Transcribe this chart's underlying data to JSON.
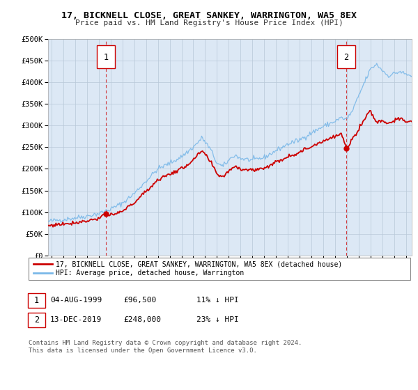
{
  "title": "17, BICKNELL CLOSE, GREAT SANKEY, WARRINGTON, WA5 8EX",
  "subtitle": "Price paid vs. HM Land Registry's House Price Index (HPI)",
  "hpi_color": "#7ab8e8",
  "price_color": "#cc0000",
  "bg_color": "#dce8f5",
  "grid_color": "#b8c8d8",
  "ylim": [
    0,
    500000
  ],
  "yticks": [
    0,
    50000,
    100000,
    150000,
    200000,
    250000,
    300000,
    350000,
    400000,
    450000,
    500000
  ],
  "ytick_labels": [
    "£0",
    "£50K",
    "£100K",
    "£150K",
    "£200K",
    "£250K",
    "£300K",
    "£350K",
    "£400K",
    "£450K",
    "£500K"
  ],
  "xlim_start": 1994.7,
  "xlim_end": 2025.5,
  "xticks": [
    1995,
    1996,
    1997,
    1998,
    1999,
    2000,
    2001,
    2002,
    2003,
    2004,
    2005,
    2006,
    2007,
    2008,
    2009,
    2010,
    2011,
    2012,
    2013,
    2014,
    2015,
    2016,
    2017,
    2018,
    2019,
    2020,
    2021,
    2022,
    2023,
    2024,
    2025
  ],
  "sale1_x": 1999.59,
  "sale1_y": 96500,
  "sale1_label": "1",
  "sale1_date": "04-AUG-1999",
  "sale1_price": "£96,500",
  "sale1_hpi": "11% ↓ HPI",
  "sale2_x": 2019.95,
  "sale2_y": 248000,
  "sale2_label": "2",
  "sale2_date": "13-DEC-2019",
  "sale2_price": "£248,000",
  "sale2_hpi": "23% ↓ HPI",
  "legend_label1": "17, BICKNELL CLOSE, GREAT SANKEY, WARRINGTON, WA5 8EX (detached house)",
  "legend_label2": "HPI: Average price, detached house, Warrington",
  "footer1": "Contains HM Land Registry data © Crown copyright and database right 2024.",
  "footer2": "This data is licensed under the Open Government Licence v3.0.",
  "hpi_anchors_t": [
    1994.7,
    1995.0,
    1996.0,
    1997.0,
    1998.0,
    1999.0,
    2000.0,
    2001.0,
    2002.0,
    2003.0,
    2004.0,
    2005.0,
    2006.0,
    2007.0,
    2007.75,
    2008.5,
    2009.0,
    2009.5,
    2010.0,
    2010.5,
    2011.0,
    2012.0,
    2013.0,
    2014.0,
    2015.0,
    2016.0,
    2017.0,
    2018.0,
    2019.0,
    2019.5,
    2020.0,
    2020.5,
    2021.0,
    2021.5,
    2022.0,
    2022.5,
    2023.0,
    2023.5,
    2024.0,
    2024.5,
    2025.0,
    2025.5
  ],
  "hpi_anchors_v": [
    78000,
    80000,
    83000,
    87000,
    91000,
    97000,
    107000,
    121000,
    143000,
    172000,
    200000,
    213000,
    228000,
    250000,
    272000,
    243000,
    213000,
    205000,
    220000,
    232000,
    224000,
    220000,
    226000,
    242000,
    257000,
    267000,
    283000,
    298000,
    310000,
    318000,
    314000,
    335000,
    368000,
    400000,
    430000,
    442000,
    428000,
    415000,
    420000,
    425000,
    418000,
    415000
  ],
  "price_anchors_t": [
    1994.7,
    1995.0,
    1996.0,
    1997.0,
    1998.0,
    1999.0,
    1999.59,
    2000.0,
    2001.0,
    2002.0,
    2003.0,
    2004.0,
    2005.0,
    2006.0,
    2007.0,
    2007.75,
    2008.5,
    2009.0,
    2009.5,
    2010.0,
    2010.5,
    2011.0,
    2012.0,
    2013.0,
    2014.0,
    2015.0,
    2016.0,
    2017.0,
    2018.0,
    2019.0,
    2019.5,
    2019.95,
    2020.2,
    2020.5,
    2021.0,
    2021.5,
    2022.0,
    2022.25,
    2022.5,
    2023.0,
    2023.5,
    2024.0,
    2024.5,
    2025.0,
    2025.5
  ],
  "price_anchors_v": [
    68000,
    70000,
    73000,
    76000,
    80000,
    86000,
    96500,
    91000,
    102000,
    122000,
    148000,
    175000,
    188000,
    200000,
    220000,
    242000,
    214000,
    188000,
    182000,
    195000,
    207000,
    200000,
    197000,
    202000,
    215000,
    229000,
    238000,
    252000,
    265000,
    274000,
    282000,
    248000,
    256000,
    270000,
    292000,
    315000,
    336000,
    320000,
    308000,
    312000,
    305000,
    312000,
    315000,
    310000,
    308000
  ]
}
